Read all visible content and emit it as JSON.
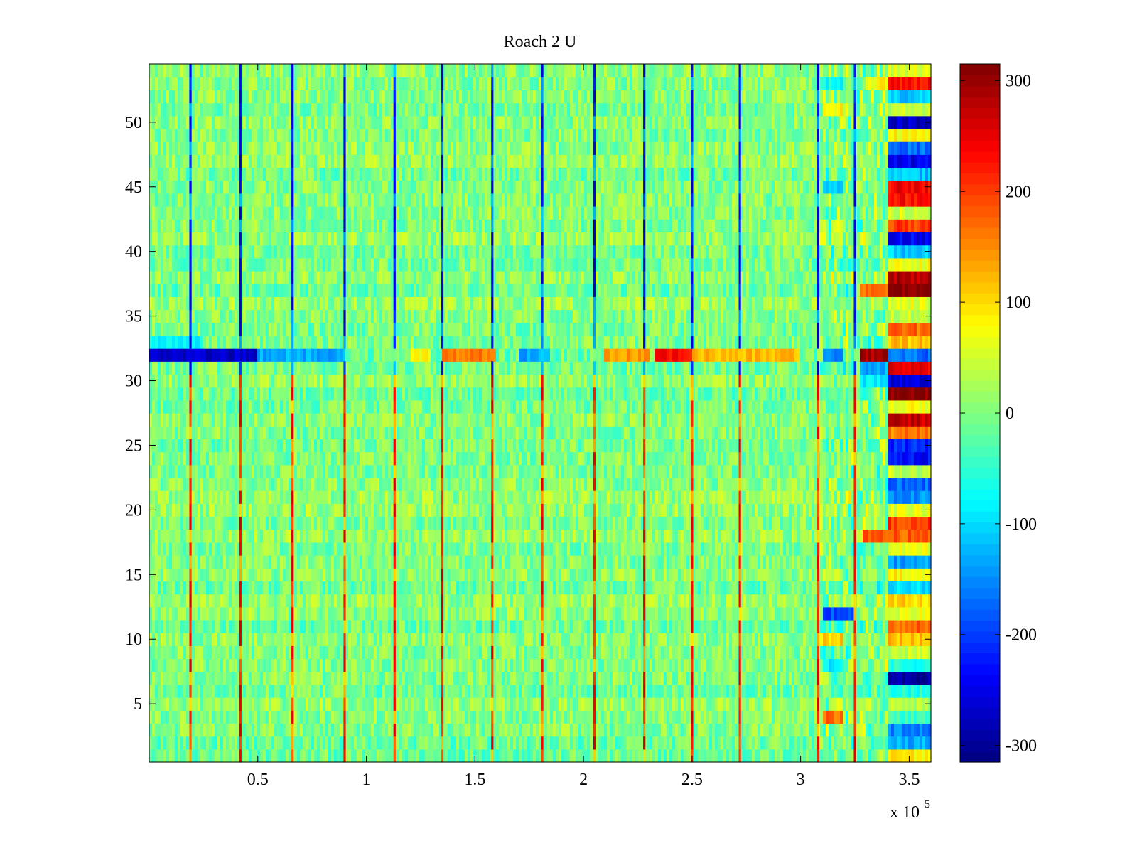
{
  "chart_data": {
    "type": "heatmap",
    "title": "Roach 2 U",
    "xlabel": "",
    "ylabel": "",
    "x_multiplier_label": {
      "base": "x 10",
      "exponent": "5"
    },
    "xlim": [
      0,
      3.6
    ],
    "ylim": [
      0.5,
      54.5
    ],
    "x_ticks": [
      0.5,
      1,
      1.5,
      2,
      2.5,
      3,
      3.5
    ],
    "x_tick_labels": [
      "0.5",
      "1",
      "1.5",
      "2",
      "2.5",
      "3",
      "3.5"
    ],
    "y_ticks": [
      5,
      10,
      15,
      20,
      25,
      30,
      35,
      40,
      45,
      50
    ],
    "y_tick_labels": [
      "5",
      "10",
      "15",
      "20",
      "25",
      "30",
      "35",
      "40",
      "45",
      "50"
    ],
    "n_rows": 54,
    "colormap": "jet",
    "colorbar": {
      "range": [
        -315,
        315
      ],
      "ticks": [
        300,
        200,
        100,
        0,
        -100,
        -200,
        -300
      ],
      "tick_labels": [
        "300",
        "200",
        "100",
        "0",
        "-100",
        "-200",
        "-300"
      ]
    },
    "baseline_value": 0,
    "noise_amplitude": 45,
    "spike_columns_x": [
      0.19,
      0.42,
      0.66,
      0.9,
      1.13,
      1.35,
      1.58,
      1.81,
      2.05,
      2.28,
      2.5,
      2.72,
      3.08,
      3.25
    ],
    "spike_pattern": "negative (blue) in upper rows, positive (red) in lower rows",
    "features": [
      {
        "row": 32,
        "x_range": [
          0.0,
          0.5
        ],
        "value": -270
      },
      {
        "row": 32,
        "x_range": [
          0.5,
          0.9
        ],
        "value": -130
      },
      {
        "row": 32,
        "x_range": [
          1.2,
          1.3
        ],
        "value": 80
      },
      {
        "row": 32,
        "x_range": [
          1.35,
          1.6
        ],
        "value": 160
      },
      {
        "row": 32,
        "x_range": [
          1.7,
          1.85
        ],
        "value": -130
      },
      {
        "row": 32,
        "x_range": [
          2.1,
          2.3
        ],
        "value": 140
      },
      {
        "row": 32,
        "x_range": [
          2.33,
          2.5
        ],
        "value": 230
      },
      {
        "row": 32,
        "x_range": [
          2.5,
          3.0
        ],
        "value": 120
      },
      {
        "row": 32,
        "x_range": [
          3.1,
          3.2
        ],
        "value": -150
      },
      {
        "row": 32,
        "x_range": [
          3.27,
          3.4
        ],
        "value": 290
      },
      {
        "row": 33,
        "x_range": [
          0.0,
          0.25
        ],
        "value": -80
      },
      {
        "row": 31,
        "x_range": [
          3.27,
          3.4
        ],
        "value": -130
      },
      {
        "row": 30,
        "x_range": [
          3.27,
          3.4
        ],
        "value": -90
      },
      {
        "row": 12,
        "x_range": [
          3.1,
          3.25
        ],
        "value": -190
      },
      {
        "row": 4,
        "x_range": [
          3.1,
          3.2
        ],
        "value": 170
      },
      {
        "row": 45,
        "x_range": [
          3.1,
          3.2
        ],
        "value": -110
      },
      {
        "row": 37,
        "x_range": [
          3.27,
          3.4
        ],
        "value": 170
      },
      {
        "row": 18,
        "x_range": [
          3.28,
          3.4
        ],
        "value": 180
      },
      {
        "row": 53,
        "x_range": [
          3.3,
          3.4
        ],
        "value": 80
      },
      {
        "row": 51,
        "x_range": [
          3.1,
          3.2
        ],
        "value": 80
      },
      {
        "row": 53,
        "x_range": [
          3.1,
          3.2
        ],
        "value": -70
      },
      {
        "row": 10,
        "x_range": [
          3.1,
          3.2
        ],
        "value": 110
      },
      {
        "row": 8,
        "x_range": [
          3.1,
          3.2
        ],
        "value": -90
      }
    ],
    "rightmost_block": {
      "x_range": [
        3.41,
        3.6
      ],
      "row_values": [
        {
          "row": 1,
          "value": 90
        },
        {
          "row": 2,
          "value": -130
        },
        {
          "row": 3,
          "value": -150
        },
        {
          "row": 4,
          "value": -40
        },
        {
          "row": 5,
          "value": 30
        },
        {
          "row": 6,
          "value": -60
        },
        {
          "row": 7,
          "value": -300
        },
        {
          "row": 8,
          "value": -60
        },
        {
          "row": 9,
          "value": 40
        },
        {
          "row": 10,
          "value": 120
        },
        {
          "row": 11,
          "value": 170
        },
        {
          "row": 12,
          "value": 60
        },
        {
          "row": 13,
          "value": 100
        },
        {
          "row": 14,
          "value": -100
        },
        {
          "row": 15,
          "value": 80
        },
        {
          "row": 16,
          "value": -140
        },
        {
          "row": 17,
          "value": 60
        },
        {
          "row": 18,
          "value": 180
        },
        {
          "row": 19,
          "value": 200
        },
        {
          "row": 20,
          "value": 60
        },
        {
          "row": 21,
          "value": -150
        },
        {
          "row": 22,
          "value": -170
        },
        {
          "row": 23,
          "value": 40
        },
        {
          "row": 24,
          "value": -230
        },
        {
          "row": 25,
          "value": -210
        },
        {
          "row": 26,
          "value": 160
        },
        {
          "row": 27,
          "value": 270
        },
        {
          "row": 28,
          "value": 70
        },
        {
          "row": 29,
          "value": 315
        },
        {
          "row": 30,
          "value": -260
        },
        {
          "row": 31,
          "value": 250
        },
        {
          "row": 32,
          "value": -170
        },
        {
          "row": 33,
          "value": 120
        },
        {
          "row": 34,
          "value": 170
        },
        {
          "row": 35,
          "value": 40
        },
        {
          "row": 36,
          "value": 60
        },
        {
          "row": 37,
          "value": 315
        },
        {
          "row": 38,
          "value": 280
        },
        {
          "row": 39,
          "value": 70
        },
        {
          "row": 40,
          "value": -110
        },
        {
          "row": 41,
          "value": -240
        },
        {
          "row": 42,
          "value": 200
        },
        {
          "row": 43,
          "value": 50
        },
        {
          "row": 44,
          "value": 230
        },
        {
          "row": 45,
          "value": 240
        },
        {
          "row": 46,
          "value": -120
        },
        {
          "row": 47,
          "value": -250
        },
        {
          "row": 48,
          "value": -170
        },
        {
          "row": 49,
          "value": 80
        },
        {
          "row": 50,
          "value": -270
        },
        {
          "row": 51,
          "value": 40
        },
        {
          "row": 52,
          "value": -110
        },
        {
          "row": 53,
          "value": 230
        },
        {
          "row": 54,
          "value": 60
        }
      ]
    }
  }
}
